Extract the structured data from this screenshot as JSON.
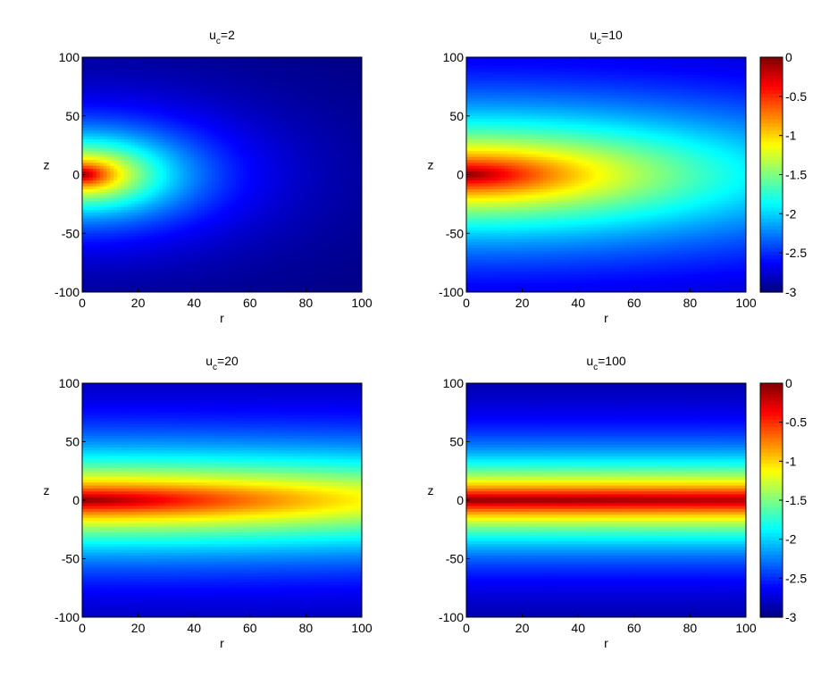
{
  "chart_data": [
    {
      "type": "heatmap",
      "title_main": "u",
      "title_sub": "c",
      "title_value": "=2",
      "xlabel": "r",
      "ylabel": "z",
      "xlim": [
        0,
        100
      ],
      "ylim": [
        -100,
        100
      ],
      "xticks": [
        "0",
        "20",
        "40",
        "60",
        "80",
        "100"
      ],
      "yticks": [
        "100",
        "50",
        "0",
        "-50",
        "-100"
      ],
      "field": {
        "peak_value": 0,
        "radial_decay_scale": 35,
        "vertical_decay_scale": 35,
        "floor_value": -3
      },
      "colorbar": false
    },
    {
      "type": "heatmap",
      "title_main": "u",
      "title_sub": "c",
      "title_value": "=10",
      "xlabel": "r",
      "ylabel": "z",
      "xlim": [
        0,
        100
      ],
      "ylim": [
        -100,
        100
      ],
      "xticks": [
        "0",
        "20",
        "40",
        "60",
        "80",
        "100"
      ],
      "yticks": [
        "100",
        "50",
        "0",
        "-50",
        "-100"
      ],
      "field": {
        "peak_value": 0,
        "radial_decay_scale": 120,
        "vertical_decay_scale": 55,
        "floor_value": -3
      },
      "colorbar": true,
      "colorbar_ticks": [
        "0",
        "-0.5",
        "-1",
        "-1.5",
        "-2",
        "-2.5",
        "-3"
      ],
      "clim": [
        -3,
        0
      ]
    },
    {
      "type": "heatmap",
      "title_main": "u",
      "title_sub": "c",
      "title_value": "=20",
      "xlabel": "r",
      "ylabel": "z",
      "xlim": [
        0,
        100
      ],
      "ylim": [
        -100,
        100
      ],
      "xticks": [
        "0",
        "20",
        "40",
        "60",
        "80",
        "100"
      ],
      "yticks": [
        "100",
        "50",
        "0",
        "-50",
        "-100"
      ],
      "field": {
        "peak_value": 0,
        "radial_decay_scale": 260,
        "vertical_decay_scale": 45,
        "floor_value": -3
      },
      "colorbar": false
    },
    {
      "type": "heatmap",
      "title_main": "u",
      "title_sub": "c",
      "title_value": "=100",
      "xlabel": "r",
      "ylabel": "z",
      "xlim": [
        0,
        100
      ],
      "ylim": [
        -100,
        100
      ],
      "xticks": [
        "0",
        "20",
        "40",
        "60",
        "80",
        "100"
      ],
      "yticks": [
        "100",
        "50",
        "0",
        "-50",
        "-100"
      ],
      "field": {
        "peak_value": 0,
        "radial_decay_scale": 2000,
        "vertical_decay_scale": 40,
        "floor_value": -3
      },
      "colorbar": true,
      "colorbar_ticks": [
        "0",
        "-0.5",
        "-1",
        "-1.5",
        "-2",
        "-2.5",
        "-3"
      ],
      "clim": [
        -3,
        0
      ]
    }
  ]
}
